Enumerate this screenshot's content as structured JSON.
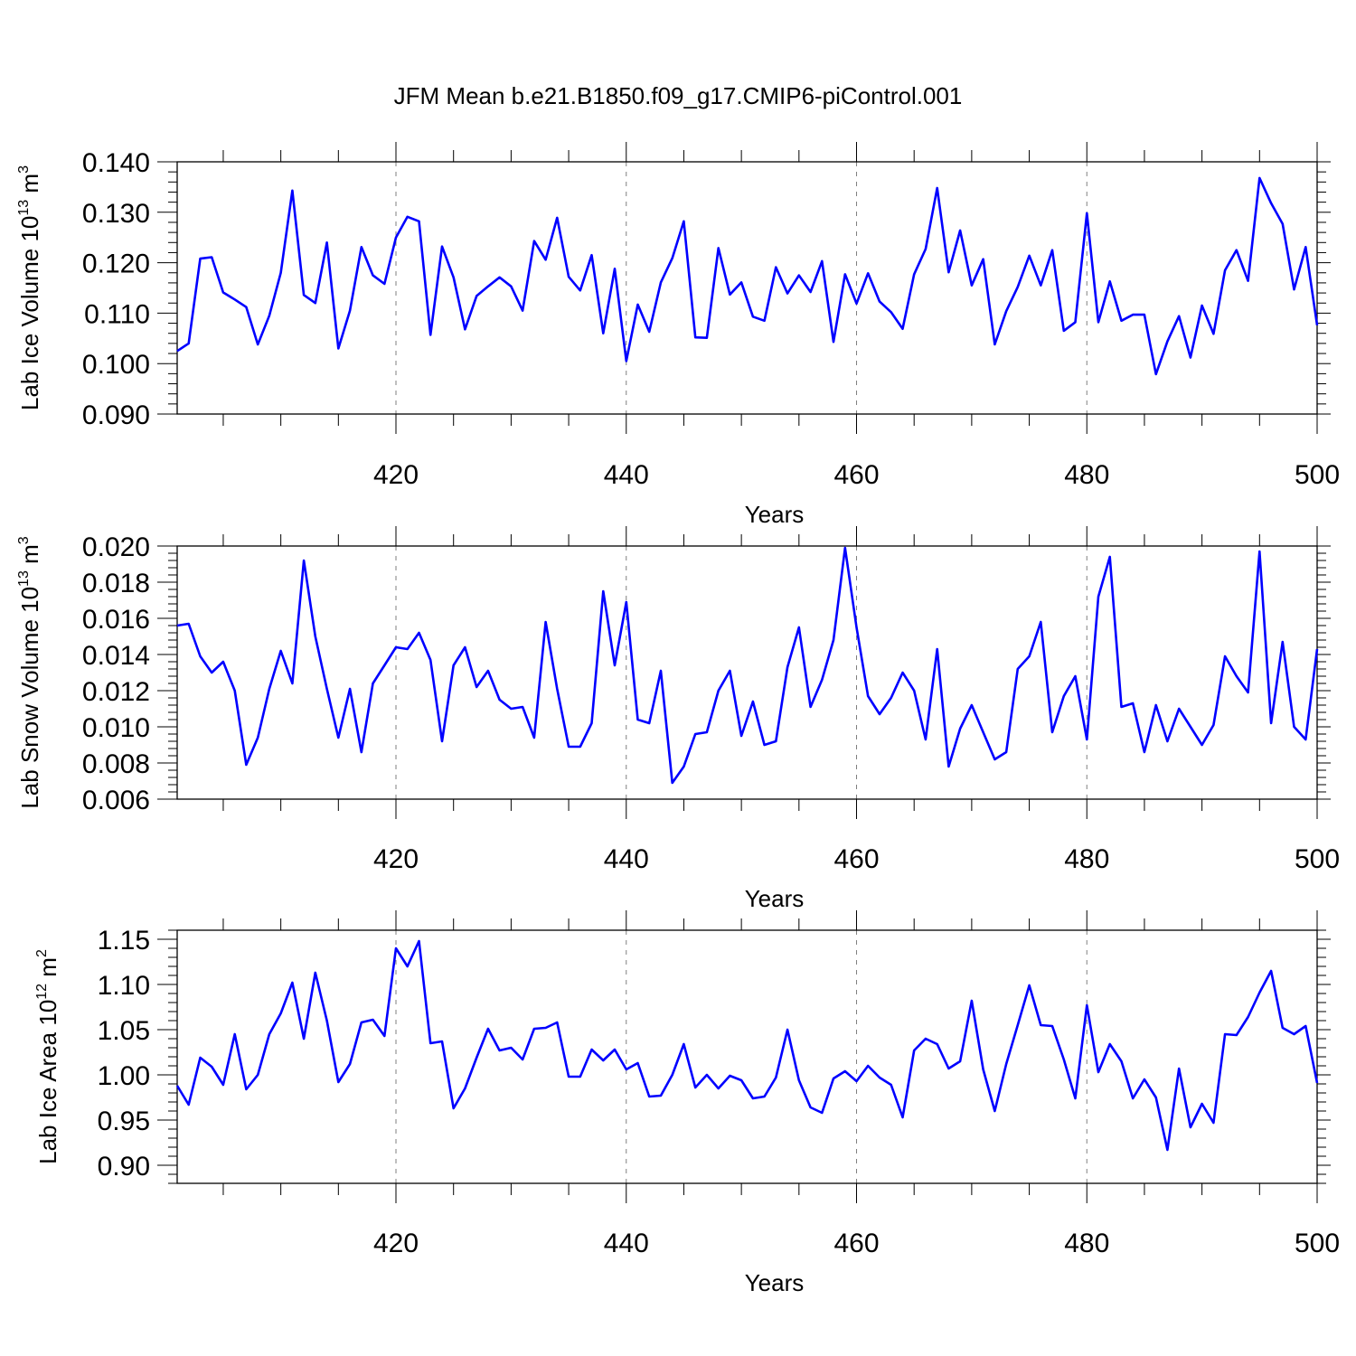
{
  "figure_title": "JFM Mean b.e21.B1850.f09_g17.CMIP6-piControl.001",
  "colors": {
    "line": "#0000ff",
    "axes": "#000000",
    "grid": "#808080"
  },
  "chart_data": [
    {
      "type": "line",
      "title": "JFM Mean b.e21.B1850.f09_g17.CMIP6-piControl.001",
      "xlabel": "Years",
      "ylabel": "Lab Ice Volume 10",
      "ylabel_sup": "13",
      "ylabel_unit": "m",
      "ylabel_unit_sup": "3",
      "xlim": [
        401,
        500
      ],
      "ylim": [
        0.09,
        0.14
      ],
      "yticks": [
        "0.090",
        "0.100",
        "0.110",
        "0.120",
        "0.130",
        "0.140"
      ],
      "xticks": [
        "420",
        "440",
        "460",
        "480",
        "500"
      ],
      "grid": "vertical dashed at 420, 440, 460, 480",
      "series": [
        {
          "name": "Lab Ice Volume",
          "color": "#0000ff",
          "values": [
            0.1025,
            0.104,
            0.1208,
            0.1211,
            0.1141,
            0.1127,
            0.1112,
            0.1038,
            0.1095,
            0.118,
            0.1343,
            0.1136,
            0.112,
            0.124,
            0.103,
            0.1105,
            0.1231,
            0.1175,
            0.1158,
            0.125,
            0.1291,
            0.1282,
            0.1057,
            0.1232,
            0.1171,
            0.1068,
            0.1134,
            0.1153,
            0.1171,
            0.1153,
            0.1105,
            0.1243,
            0.1206,
            0.1289,
            0.1172,
            0.1145,
            0.1215,
            0.106,
            0.1188,
            0.1005,
            0.1117,
            0.1063,
            0.1161,
            0.1209,
            0.1282,
            0.1052,
            0.1051,
            0.1229,
            0.1137,
            0.1161,
            0.1093,
            0.1085,
            0.1191,
            0.1139,
            0.1175,
            0.1142,
            0.1203,
            0.1043,
            0.1177,
            0.1119,
            0.1179,
            0.1123,
            0.1102,
            0.1069,
            0.1177,
            0.1227,
            0.1348,
            0.1181,
            0.1264,
            0.1155,
            0.1207,
            0.1038,
            0.1104,
            0.1152,
            0.1214,
            0.1155,
            0.1225,
            0.1065,
            0.1082,
            0.1298,
            0.1082,
            0.1163,
            0.1085,
            0.1097,
            0.1097,
            0.0979,
            0.1044,
            0.1094,
            0.1012,
            0.1115,
            0.1059,
            0.1185,
            0.1225,
            0.1164,
            0.1368,
            0.1318,
            0.1277,
            0.1147,
            0.1231,
            0.1076
          ]
        }
      ]
    },
    {
      "type": "line",
      "xlabel": "Years",
      "ylabel": "Lab Snow Volume 10",
      "ylabel_sup": "13",
      "ylabel_unit": "m",
      "ylabel_unit_sup": "3",
      "xlim": [
        401,
        500
      ],
      "ylim": [
        0.006,
        0.02
      ],
      "yticks": [
        "0.006",
        "0.008",
        "0.010",
        "0.012",
        "0.014",
        "0.016",
        "0.018",
        "0.020"
      ],
      "xticks": [
        "420",
        "440",
        "460",
        "480",
        "500"
      ],
      "grid": "vertical dashed at 420, 440, 460, 480",
      "series": [
        {
          "name": "Lab Snow Volume",
          "color": "#0000ff",
          "values": [
            0.0156,
            0.0157,
            0.0139,
            0.013,
            0.0136,
            0.012,
            0.0079,
            0.0094,
            0.0121,
            0.0142,
            0.0124,
            0.0192,
            0.015,
            0.0121,
            0.0094,
            0.0121,
            0.0086,
            0.0124,
            0.0134,
            0.0144,
            0.0143,
            0.0152,
            0.0137,
            0.0092,
            0.0134,
            0.0144,
            0.0122,
            0.0131,
            0.0115,
            0.011,
            0.0111,
            0.0094,
            0.0158,
            0.0121,
            0.0089,
            0.0089,
            0.0102,
            0.0175,
            0.0134,
            0.0169,
            0.0104,
            0.0102,
            0.0131,
            0.0069,
            0.0078,
            0.0096,
            0.0097,
            0.012,
            0.0131,
            0.0095,
            0.0114,
            0.009,
            0.0092,
            0.0133,
            0.0155,
            0.0111,
            0.0126,
            0.0148,
            0.0199,
            0.0155,
            0.0117,
            0.0107,
            0.0116,
            0.013,
            0.012,
            0.0093,
            0.0143,
            0.0078,
            0.0099,
            0.0112,
            0.0097,
            0.0082,
            0.0086,
            0.0132,
            0.0139,
            0.0158,
            0.0097,
            0.0117,
            0.0128,
            0.0093,
            0.0172,
            0.0194,
            0.0111,
            0.0113,
            0.0086,
            0.0112,
            0.0092,
            0.011,
            0.01,
            0.009,
            0.0101,
            0.0139,
            0.0128,
            0.0119,
            0.0197,
            0.0102,
            0.0147,
            0.01,
            0.0093,
            0.0143
          ]
        }
      ]
    },
    {
      "type": "line",
      "xlabel": "Years",
      "ylabel": "Lab Ice Area 10",
      "ylabel_sup": "12",
      "ylabel_unit": "m",
      "ylabel_unit_sup": "2",
      "xlim": [
        401,
        500
      ],
      "ylim": [
        0.88,
        1.16
      ],
      "yticks": [
        "0.90",
        "0.95",
        "1.00",
        "1.05",
        "1.10",
        "1.15"
      ],
      "xticks": [
        "420",
        "440",
        "460",
        "480",
        "500"
      ],
      "grid": "vertical dashed at 420, 440, 460, 480",
      "series": [
        {
          "name": "Lab Ice Area",
          "color": "#0000ff",
          "values": [
            0.988,
            0.967,
            1.019,
            1.009,
            0.989,
            1.045,
            0.984,
            1.0,
            1.045,
            1.068,
            1.102,
            1.04,
            1.113,
            1.06,
            0.992,
            1.012,
            1.058,
            1.061,
            1.043,
            1.14,
            1.12,
            1.148,
            1.035,
            1.037,
            0.963,
            0.985,
            1.019,
            1.051,
            1.027,
            1.03,
            1.017,
            1.051,
            1.052,
            1.058,
            0.998,
            0.998,
            1.028,
            1.016,
            1.028,
            1.006,
            1.013,
            0.976,
            0.977,
            1.0,
            1.034,
            0.986,
            1.0,
            0.985,
            0.999,
            0.994,
            0.974,
            0.976,
            0.997,
            1.05,
            0.994,
            0.964,
            0.958,
            0.996,
            1.004,
            0.993,
            1.01,
            0.997,
            0.989,
            0.953,
            1.027,
            1.04,
            1.034,
            1.007,
            1.015,
            1.082,
            1.006,
            0.96,
            1.012,
            1.055,
            1.099,
            1.055,
            1.054,
            1.017,
            0.974,
            1.077,
            1.003,
            1.034,
            1.015,
            0.974,
            0.995,
            0.975,
            0.917,
            1.007,
            0.942,
            0.968,
            0.947,
            1.045,
            1.044,
            1.064,
            1.091,
            1.115,
            1.052,
            1.045,
            1.054,
            0.991
          ]
        }
      ]
    }
  ]
}
